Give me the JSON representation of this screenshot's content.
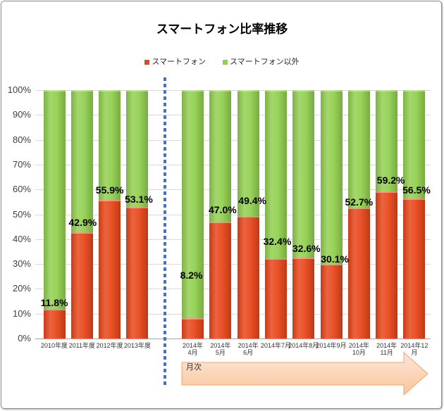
{
  "chart_data": {
    "type": "bar",
    "stacked": true,
    "title": "スマートフォン比率推移",
    "categories": [
      "2010年度",
      "2011年度",
      "2012年度",
      "2013年度",
      "2014年\n4月",
      "2014年\n5月",
      "2014年\n6月",
      "2014年7月",
      "2014年8月",
      "2014年9月",
      "2014年\n10月",
      "2014年\n11月",
      "2014年12\n月"
    ],
    "series": [
      {
        "name": "スマートフォン",
        "color": "#E8461A",
        "values": [
          11.8,
          42.9,
          55.9,
          53.1,
          8.2,
          47.0,
          49.4,
          32.4,
          32.6,
          30.1,
          52.7,
          59.2,
          56.5
        ]
      },
      {
        "name": "スマートフォン以外",
        "color": "#92D050",
        "values": [
          88.2,
          57.1,
          44.1,
          46.9,
          91.8,
          53.0,
          50.6,
          67.6,
          67.4,
          69.9,
          47.3,
          40.8,
          43.5
        ]
      }
    ],
    "data_labels": [
      "11.8%",
      "42.9%",
      "55.9%",
      "53.1%",
      "8.2%",
      "47.0%",
      "49.4%",
      "32.4%",
      "32.6%",
      "30.1%",
      "52.7%",
      "59.2%",
      "56.5%"
    ],
    "y_ticks": [
      "0%",
      "10%",
      "20%",
      "30%",
      "40%",
      "50%",
      "60%",
      "70%",
      "80%",
      "90%",
      "100%"
    ],
    "ylim": [
      0,
      100
    ],
    "grid": true,
    "legend": "top",
    "arrow_label": "月次",
    "divider_color": "#4472C4"
  }
}
